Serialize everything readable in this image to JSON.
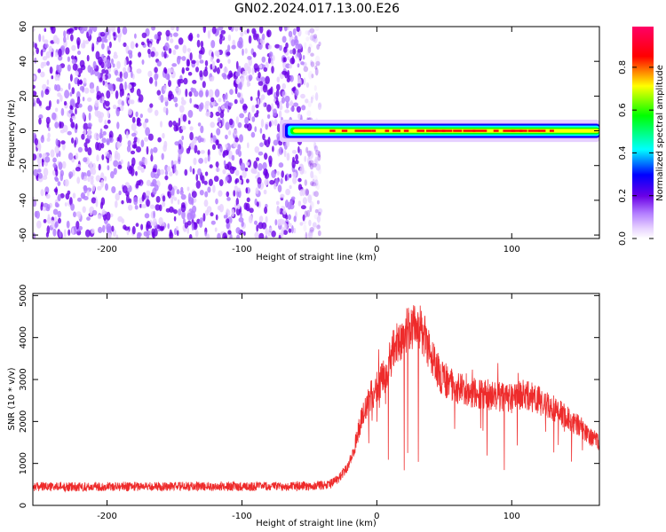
{
  "title": "GN02.2024.017.13.00.E26",
  "colors": {
    "snr_line": "#ee2b2b",
    "spectrogram_noise": "#6a00e6",
    "colormap": [
      "#ffffff",
      "#e6d0ff",
      "#b27cff",
      "#6a00e6",
      "#0000ff",
      "#00ffff",
      "#00ff00",
      "#ffff00",
      "#ff0000",
      "#ff0066"
    ]
  },
  "chart_data": [
    {
      "type": "heatmap",
      "title": "",
      "xlabel": "Height of straight line (km)",
      "ylabel": "Frequency (Hz)",
      "xlim": [
        -255,
        165
      ],
      "ylim": [
        -62,
        60
      ],
      "x_ticks": [
        "-200",
        "-100",
        "0",
        "100"
      ],
      "x_tick_values": [
        -200,
        -100,
        0,
        100
      ],
      "y_ticks": [
        "-60",
        "-40",
        "-20",
        "0",
        "20",
        "40",
        "60"
      ],
      "y_tick_values": [
        -60,
        -40,
        -20,
        0,
        20,
        40,
        60
      ],
      "noise_region_x": [
        -255,
        -42
      ],
      "signal_band": {
        "x_start": -72,
        "x_end": 165,
        "center_frequency": 0,
        "half_width": [
          2,
          4
        ],
        "peak_segment_x": [
          -35,
          130
        ]
      },
      "colorbar": {
        "label": "Normalized spectral amplitude",
        "ticks": [
          "0.0",
          "0.2",
          "0.4",
          "0.6",
          "0.8"
        ],
        "tick_values": [
          0.0,
          0.2,
          0.4,
          0.6,
          0.8
        ],
        "range": [
          0,
          0.99
        ]
      }
    },
    {
      "type": "line",
      "title": "",
      "xlabel": "Height of straight line (km)",
      "ylabel": "SNR (10 * v/v)",
      "xlim": [
        -255,
        165
      ],
      "ylim": [
        0,
        5050
      ],
      "x_ticks": [
        "-200",
        "-100",
        "0",
        "100"
      ],
      "x_tick_values": [
        -200,
        -100,
        0,
        100
      ],
      "y_ticks": [
        "0",
        "1000",
        "2000",
        "3000",
        "4000",
        "5000"
      ],
      "y_tick_values": [
        0,
        1000,
        2000,
        3000,
        4000,
        5000
      ],
      "series": [
        {
          "x": [
            -255,
            -230,
            -200,
            -170,
            -140,
            -110,
            -80,
            -50,
            -35,
            -28,
            -22,
            -18,
            -15,
            -12,
            -8,
            -5,
            -2,
            2,
            6,
            10,
            15,
            20,
            25,
            30,
            35,
            40,
            45,
            50,
            60,
            70,
            80,
            90,
            100,
            110,
            120,
            130,
            140,
            150,
            160,
            165
          ],
          "y": [
            450,
            440,
            450,
            455,
            450,
            455,
            450,
            460,
            500,
            650,
            900,
            1200,
            1600,
            2000,
            2300,
            2600,
            2700,
            2900,
            3100,
            3500,
            3900,
            4100,
            4300,
            4250,
            4100,
            3600,
            3200,
            3000,
            2800,
            2700,
            2650,
            2600,
            2550,
            2650,
            2500,
            2350,
            2100,
            1900,
            1600,
            1500
          ]
        }
      ]
    }
  ]
}
